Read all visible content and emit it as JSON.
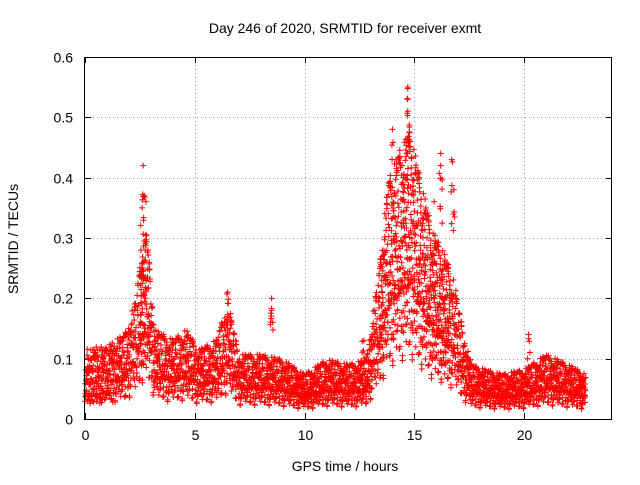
{
  "chart_data": {
    "type": "scatter",
    "title": "Day 246 of 2020, SRMTID for receiver exmt",
    "xlabel": "GPS time / hours",
    "ylabel": "SRMTID / TECUs",
    "xlim": [
      0,
      24
    ],
    "ylim": [
      0,
      0.6
    ],
    "x_ticks": [
      0,
      5,
      10,
      15,
      20
    ],
    "y_ticks": [
      0,
      0.1,
      0.2,
      0.3,
      0.4,
      0.5,
      0.6
    ],
    "x_tick_labels": [
      "0",
      "5",
      "10",
      "15",
      "20"
    ],
    "y_tick_labels": [
      "0",
      "0.1",
      "0.2",
      "0.3",
      "0.4",
      "0.5",
      "0.6"
    ],
    "grid": true,
    "marker": "+",
    "marker_color": "#ff0000",
    "series": [
      {
        "name": "SRMTID",
        "profile_hours": [
          0.0,
          1.0,
          1.8,
          2.3,
          2.6,
          2.8,
          3.2,
          4.0,
          4.6,
          5.2,
          6.0,
          6.5,
          7.0,
          8.0,
          9.0,
          10.0,
          11.0,
          12.0,
          12.8,
          13.4,
          13.8,
          14.3,
          14.8,
          15.3,
          15.8,
          16.3,
          16.8,
          17.2,
          17.6,
          18.2,
          19.0,
          20.0,
          21.0,
          22.0,
          22.8
        ],
        "profile_tecu": [
          0.07,
          0.075,
          0.085,
          0.12,
          0.17,
          0.19,
          0.09,
          0.08,
          0.09,
          0.07,
          0.08,
          0.12,
          0.065,
          0.065,
          0.06,
          0.045,
          0.06,
          0.055,
          0.06,
          0.15,
          0.24,
          0.27,
          0.29,
          0.24,
          0.19,
          0.17,
          0.14,
          0.09,
          0.055,
          0.05,
          0.045,
          0.05,
          0.065,
          0.055,
          0.045
        ],
        "peaks": [
          {
            "hours": 2.65,
            "tecu": 0.42
          },
          {
            "hours": 2.7,
            "tecu": 0.37
          },
          {
            "hours": 2.6,
            "tecu": 0.35
          },
          {
            "hours": 2.55,
            "tecu": 0.28
          },
          {
            "hours": 6.5,
            "tecu": 0.21
          },
          {
            "hours": 8.5,
            "tecu": 0.2
          },
          {
            "hours": 8.5,
            "tecu": 0.18
          },
          {
            "hours": 14.0,
            "tecu": 0.48
          },
          {
            "hours": 14.7,
            "tecu": 0.55
          },
          {
            "hours": 14.7,
            "tecu": 0.53
          },
          {
            "hours": 14.7,
            "tecu": 0.51
          },
          {
            "hours": 14.8,
            "tecu": 0.46
          },
          {
            "hours": 16.2,
            "tecu": 0.44
          },
          {
            "hours": 16.2,
            "tecu": 0.42
          },
          {
            "hours": 16.7,
            "tecu": 0.43
          },
          {
            "hours": 16.8,
            "tecu": 0.38
          },
          {
            "hours": 14.5,
            "tecu": 0.4
          },
          {
            "hours": 15.9,
            "tecu": 0.36
          },
          {
            "hours": 20.2,
            "tecu": 0.14
          },
          {
            "hours": 12.7,
            "tecu": 0.13
          }
        ]
      }
    ]
  }
}
